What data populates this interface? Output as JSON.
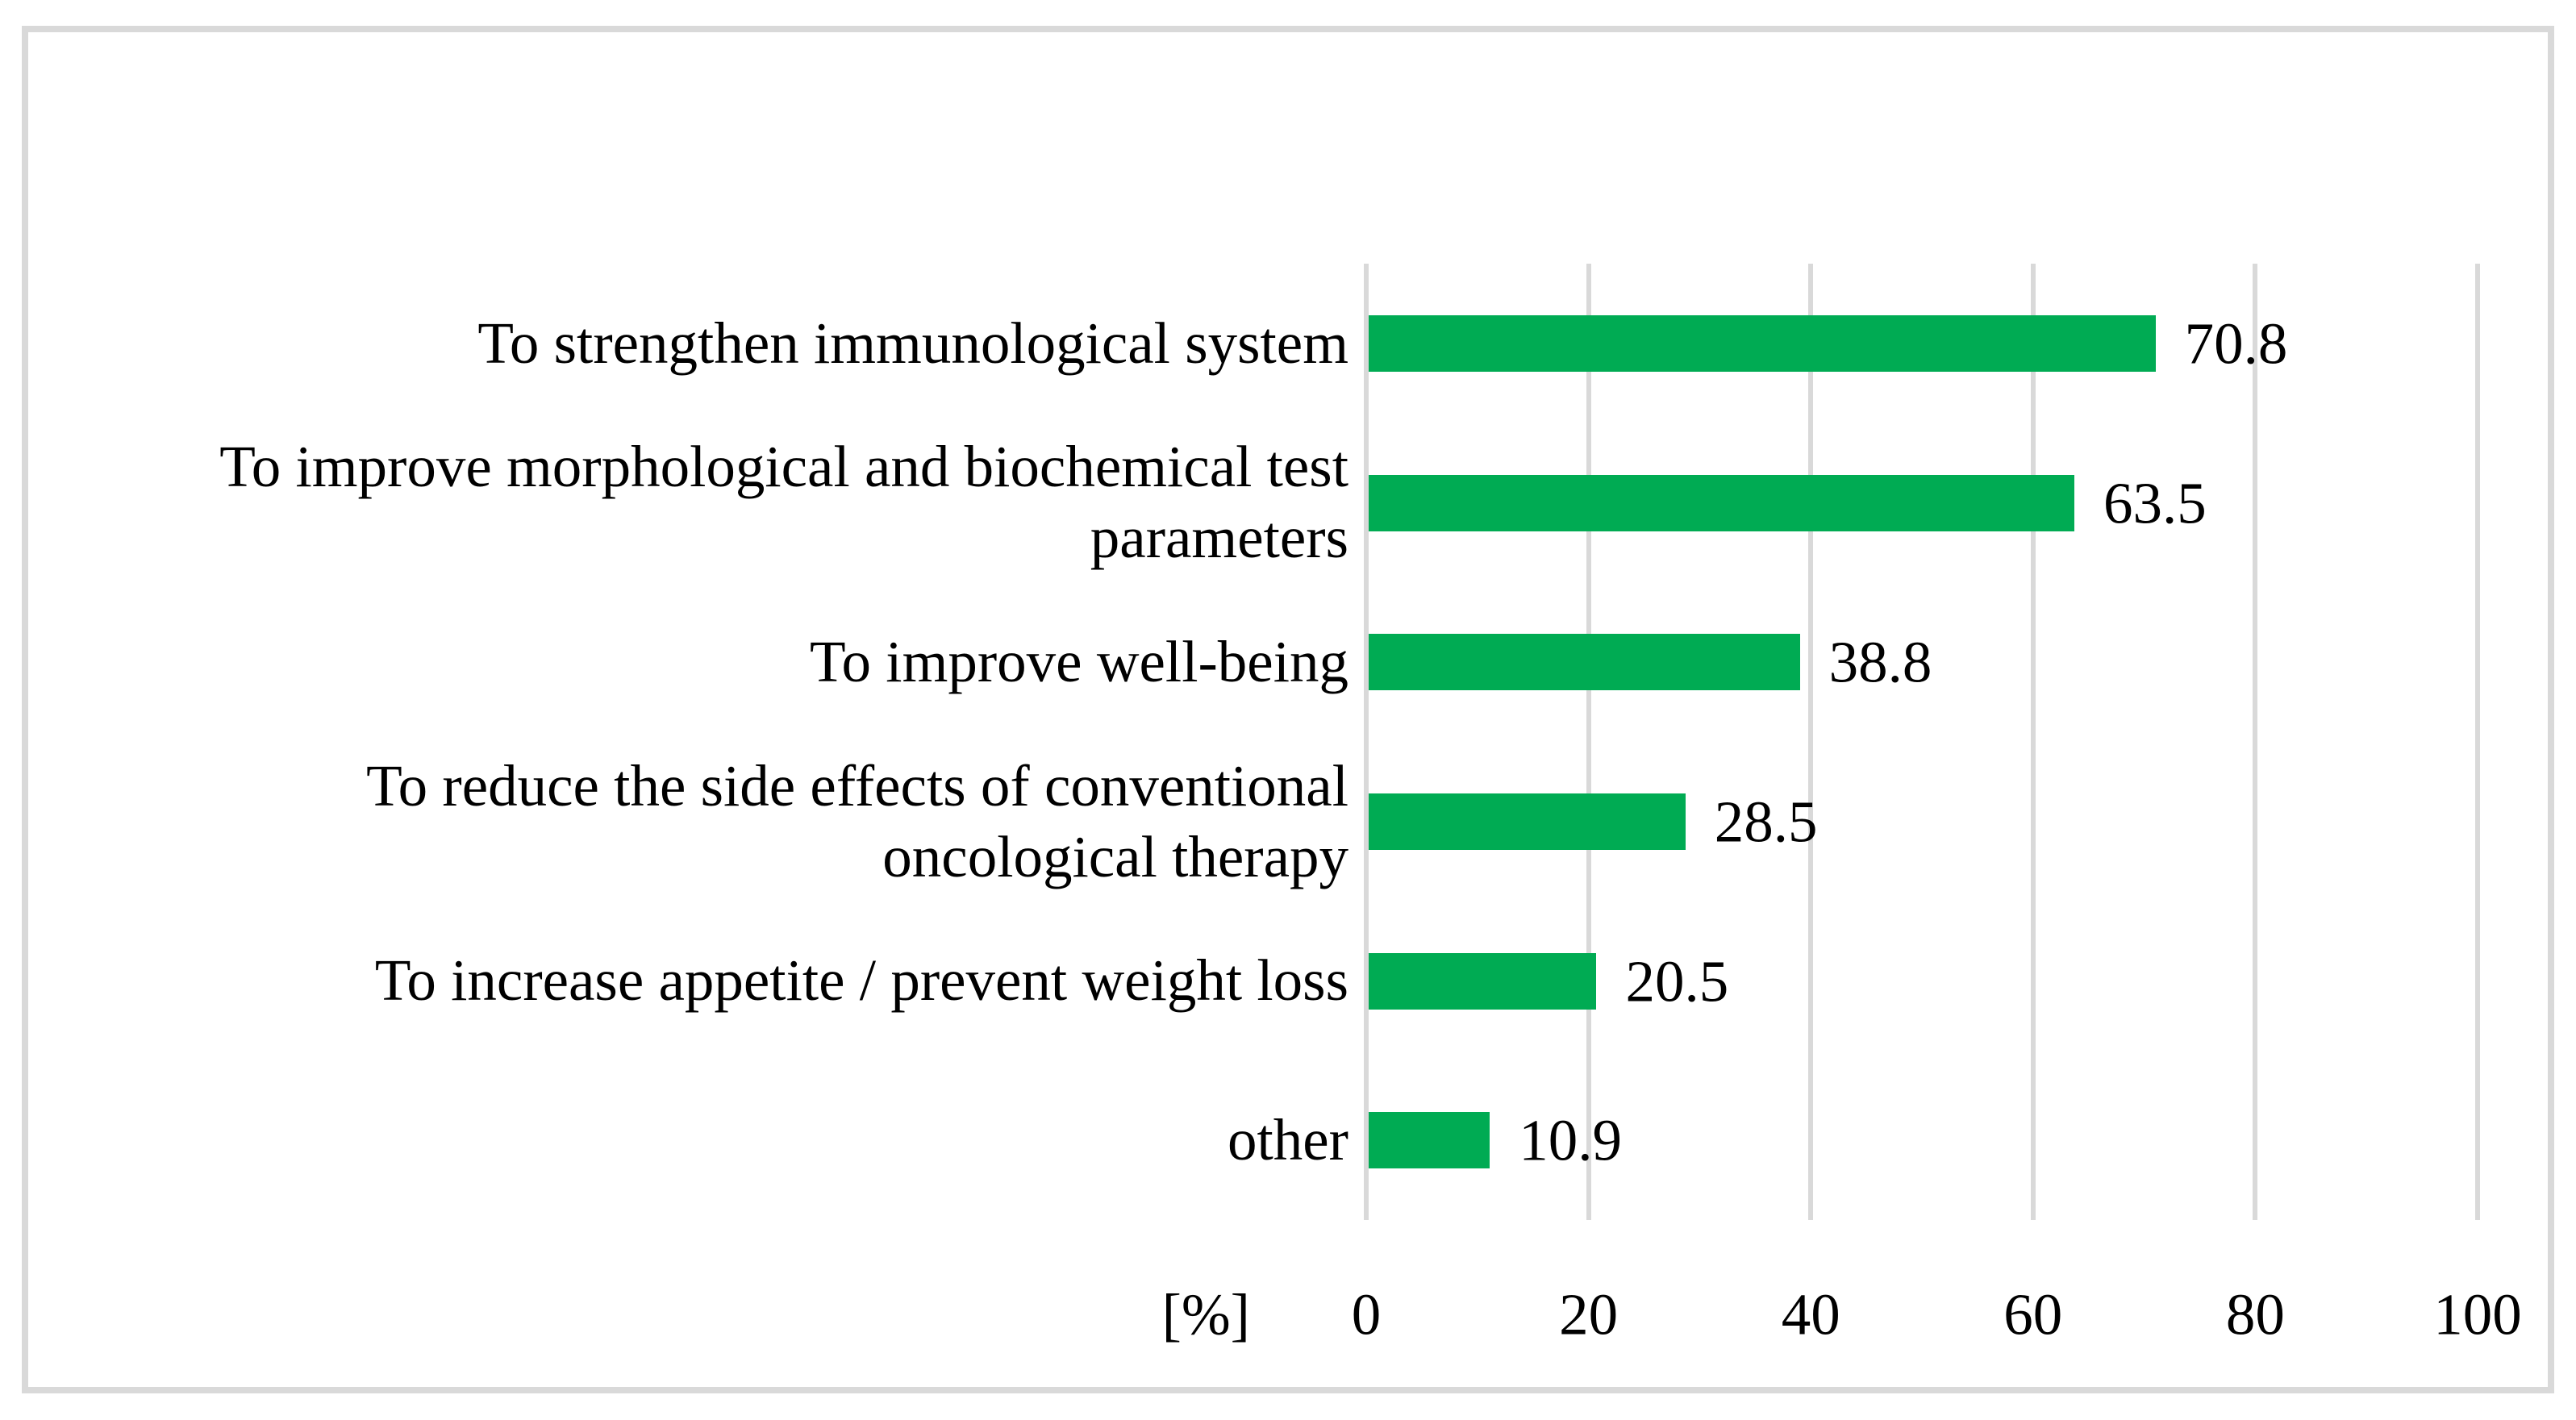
{
  "figure": {
    "background": "#FFFFFF",
    "border_color": "#D9D9D9"
  },
  "chart_data": {
    "type": "bar",
    "orientation": "horizontal",
    "title": "",
    "categories": [
      "To strengthen immunological system",
      "To improve morphological and biochemical test parameters",
      "To improve well-being",
      "To reduce the side effects of conventional oncological therapy",
      "To increase appetite / prevent weight loss",
      "other"
    ],
    "values": [
      70.8,
      63.5,
      38.8,
      28.5,
      20.5,
      10.9
    ],
    "value_labels": [
      "70.8",
      "63.5",
      "38.8",
      "28.5",
      "20.5",
      "10.9"
    ],
    "xlabel": "[%]",
    "ylabel": "",
    "xlim": [
      0,
      100
    ],
    "xticks": [
      0,
      20,
      40,
      60,
      80,
      100
    ],
    "xtick_labels": [
      "0",
      "20",
      "40",
      "60",
      "80",
      "100"
    ],
    "grid": "vertical-gridlines-on",
    "legend": "none",
    "bar_color": "#00AB53",
    "gridline_color": "#D9D9D9",
    "text_color": "#000000"
  }
}
